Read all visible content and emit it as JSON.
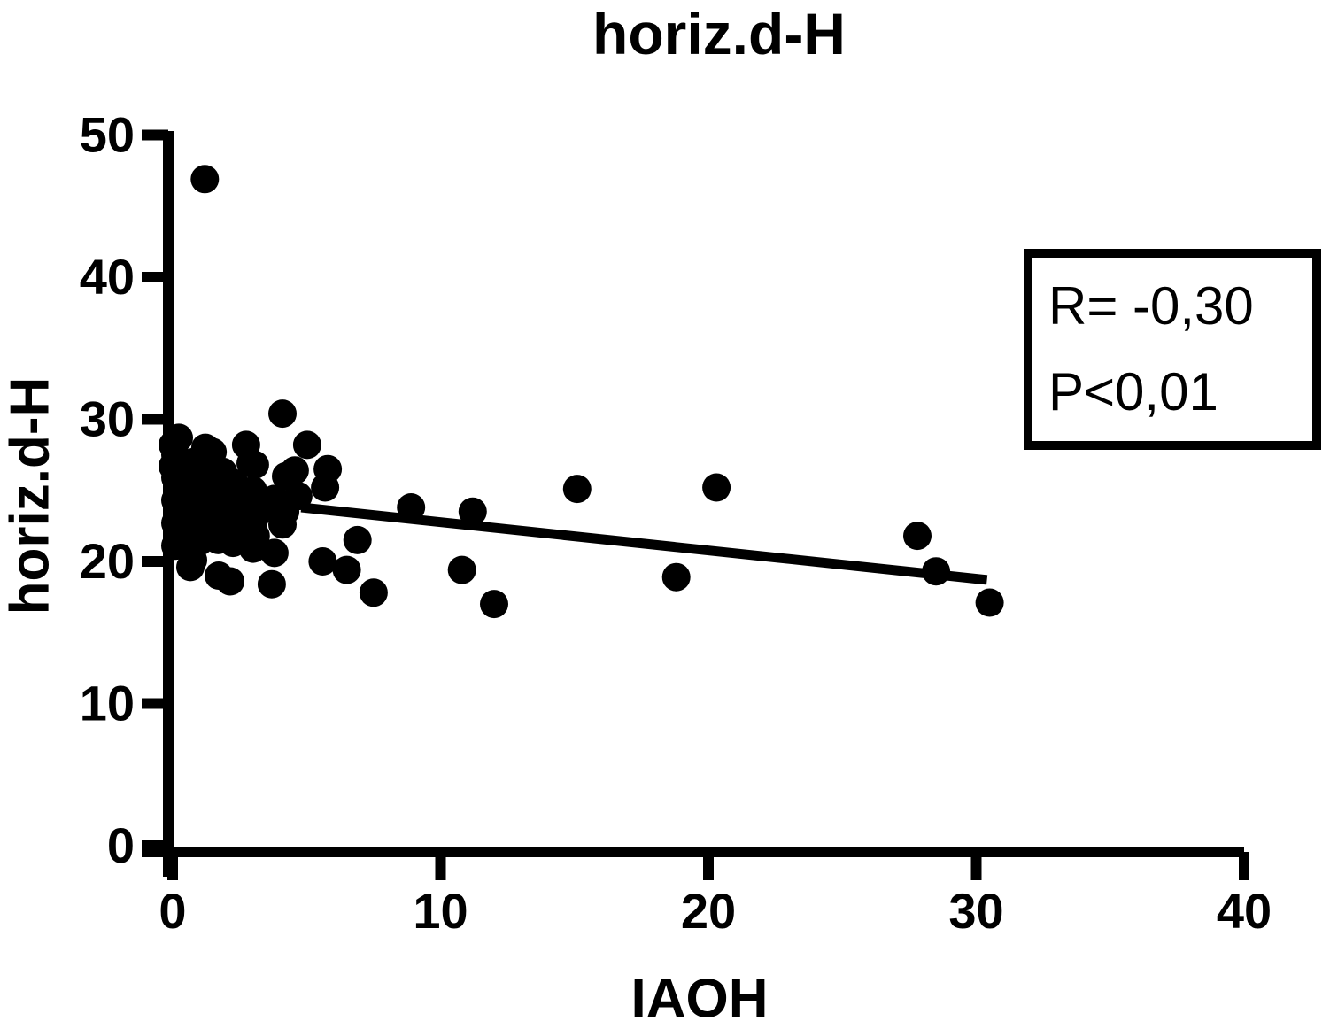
{
  "chart_data": {
    "type": "scatter",
    "title": "horiz.d-H",
    "xlabel": "IAOH",
    "ylabel": "horiz.d-H",
    "xlim": [
      0,
      40
    ],
    "ylim": [
      0,
      50
    ],
    "xticks": [
      0,
      10,
      20,
      30,
      40
    ],
    "yticks": [
      0,
      10,
      20,
      30,
      40,
      50
    ],
    "grid": false,
    "marker_color": "#000000",
    "axis_color": "#000000",
    "annotation": {
      "lines": [
        "R= -0,30",
        "P<0,01"
      ]
    },
    "regression_line": {
      "x1": 4.8,
      "y1": 23.8,
      "x2": 30.4,
      "y2": 18.7
    },
    "points": [
      [
        1.2,
        46.9
      ],
      [
        4.1,
        30.4
      ],
      [
        0.23,
        28.7
      ],
      [
        0.0,
        28.2
      ],
      [
        1.22,
        28.0
      ],
      [
        1.49,
        27.7
      ],
      [
        2.74,
        28.2
      ],
      [
        5.02,
        28.2
      ],
      [
        0.1,
        27.5
      ],
      [
        0.8,
        27.0
      ],
      [
        2.91,
        26.9
      ],
      [
        3.07,
        26.8
      ],
      [
        0.0,
        26.7
      ],
      [
        0.6,
        26.3
      ],
      [
        1.88,
        26.3
      ],
      [
        5.79,
        26.5
      ],
      [
        4.56,
        26.4
      ],
      [
        4.23,
        26.0
      ],
      [
        0.1,
        25.9
      ],
      [
        0.9,
        26.0
      ],
      [
        1.6,
        26.0
      ],
      [
        2.3,
        25.5
      ],
      [
        0.2,
        25.1
      ],
      [
        0.8,
        25.0
      ],
      [
        1.5,
        25.1
      ],
      [
        3.0,
        25.0
      ],
      [
        5.69,
        25.2
      ],
      [
        0.1,
        24.3
      ],
      [
        1.0,
        24.1
      ],
      [
        1.7,
        24.2
      ],
      [
        2.2,
        24.6
      ],
      [
        2.9,
        24.1
      ],
      [
        3.8,
        24.4
      ],
      [
        4.69,
        24.6
      ],
      [
        0.2,
        23.5
      ],
      [
        0.9,
        23.2
      ],
      [
        1.6,
        23.3
      ],
      [
        2.4,
        23.7
      ],
      [
        3.1,
        23.2
      ],
      [
        3.6,
        23.9
      ],
      [
        4.2,
        23.5
      ],
      [
        0.1,
        22.7
      ],
      [
        0.8,
        22.3
      ],
      [
        1.5,
        22.4
      ],
      [
        2.3,
        22.8
      ],
      [
        3.0,
        22.3
      ],
      [
        4.1,
        22.6
      ],
      [
        0.2,
        21.9
      ],
      [
        1.0,
        21.4
      ],
      [
        1.7,
        21.5
      ],
      [
        2.2,
        21.9
      ],
      [
        3.1,
        21.8
      ],
      [
        0.1,
        21.1
      ],
      [
        0.66,
        19.6
      ],
      [
        0.76,
        20.1
      ],
      [
        3.0,
        20.9
      ],
      [
        3.8,
        20.6
      ],
      [
        2.25,
        21.3
      ],
      [
        1.72,
        19.0
      ],
      [
        2.15,
        18.6
      ],
      [
        3.7,
        18.4
      ],
      [
        5.6,
        20.0
      ],
      [
        6.5,
        19.4
      ],
      [
        6.9,
        21.5
      ],
      [
        7.5,
        17.8
      ],
      [
        8.9,
        23.8
      ],
      [
        10.8,
        19.4
      ],
      [
        11.2,
        23.5
      ],
      [
        12.0,
        17.0
      ],
      [
        15.1,
        25.1
      ],
      [
        18.8,
        18.9
      ],
      [
        20.3,
        25.2
      ],
      [
        27.8,
        21.8
      ],
      [
        28.5,
        19.3
      ],
      [
        30.5,
        17.1
      ]
    ]
  }
}
